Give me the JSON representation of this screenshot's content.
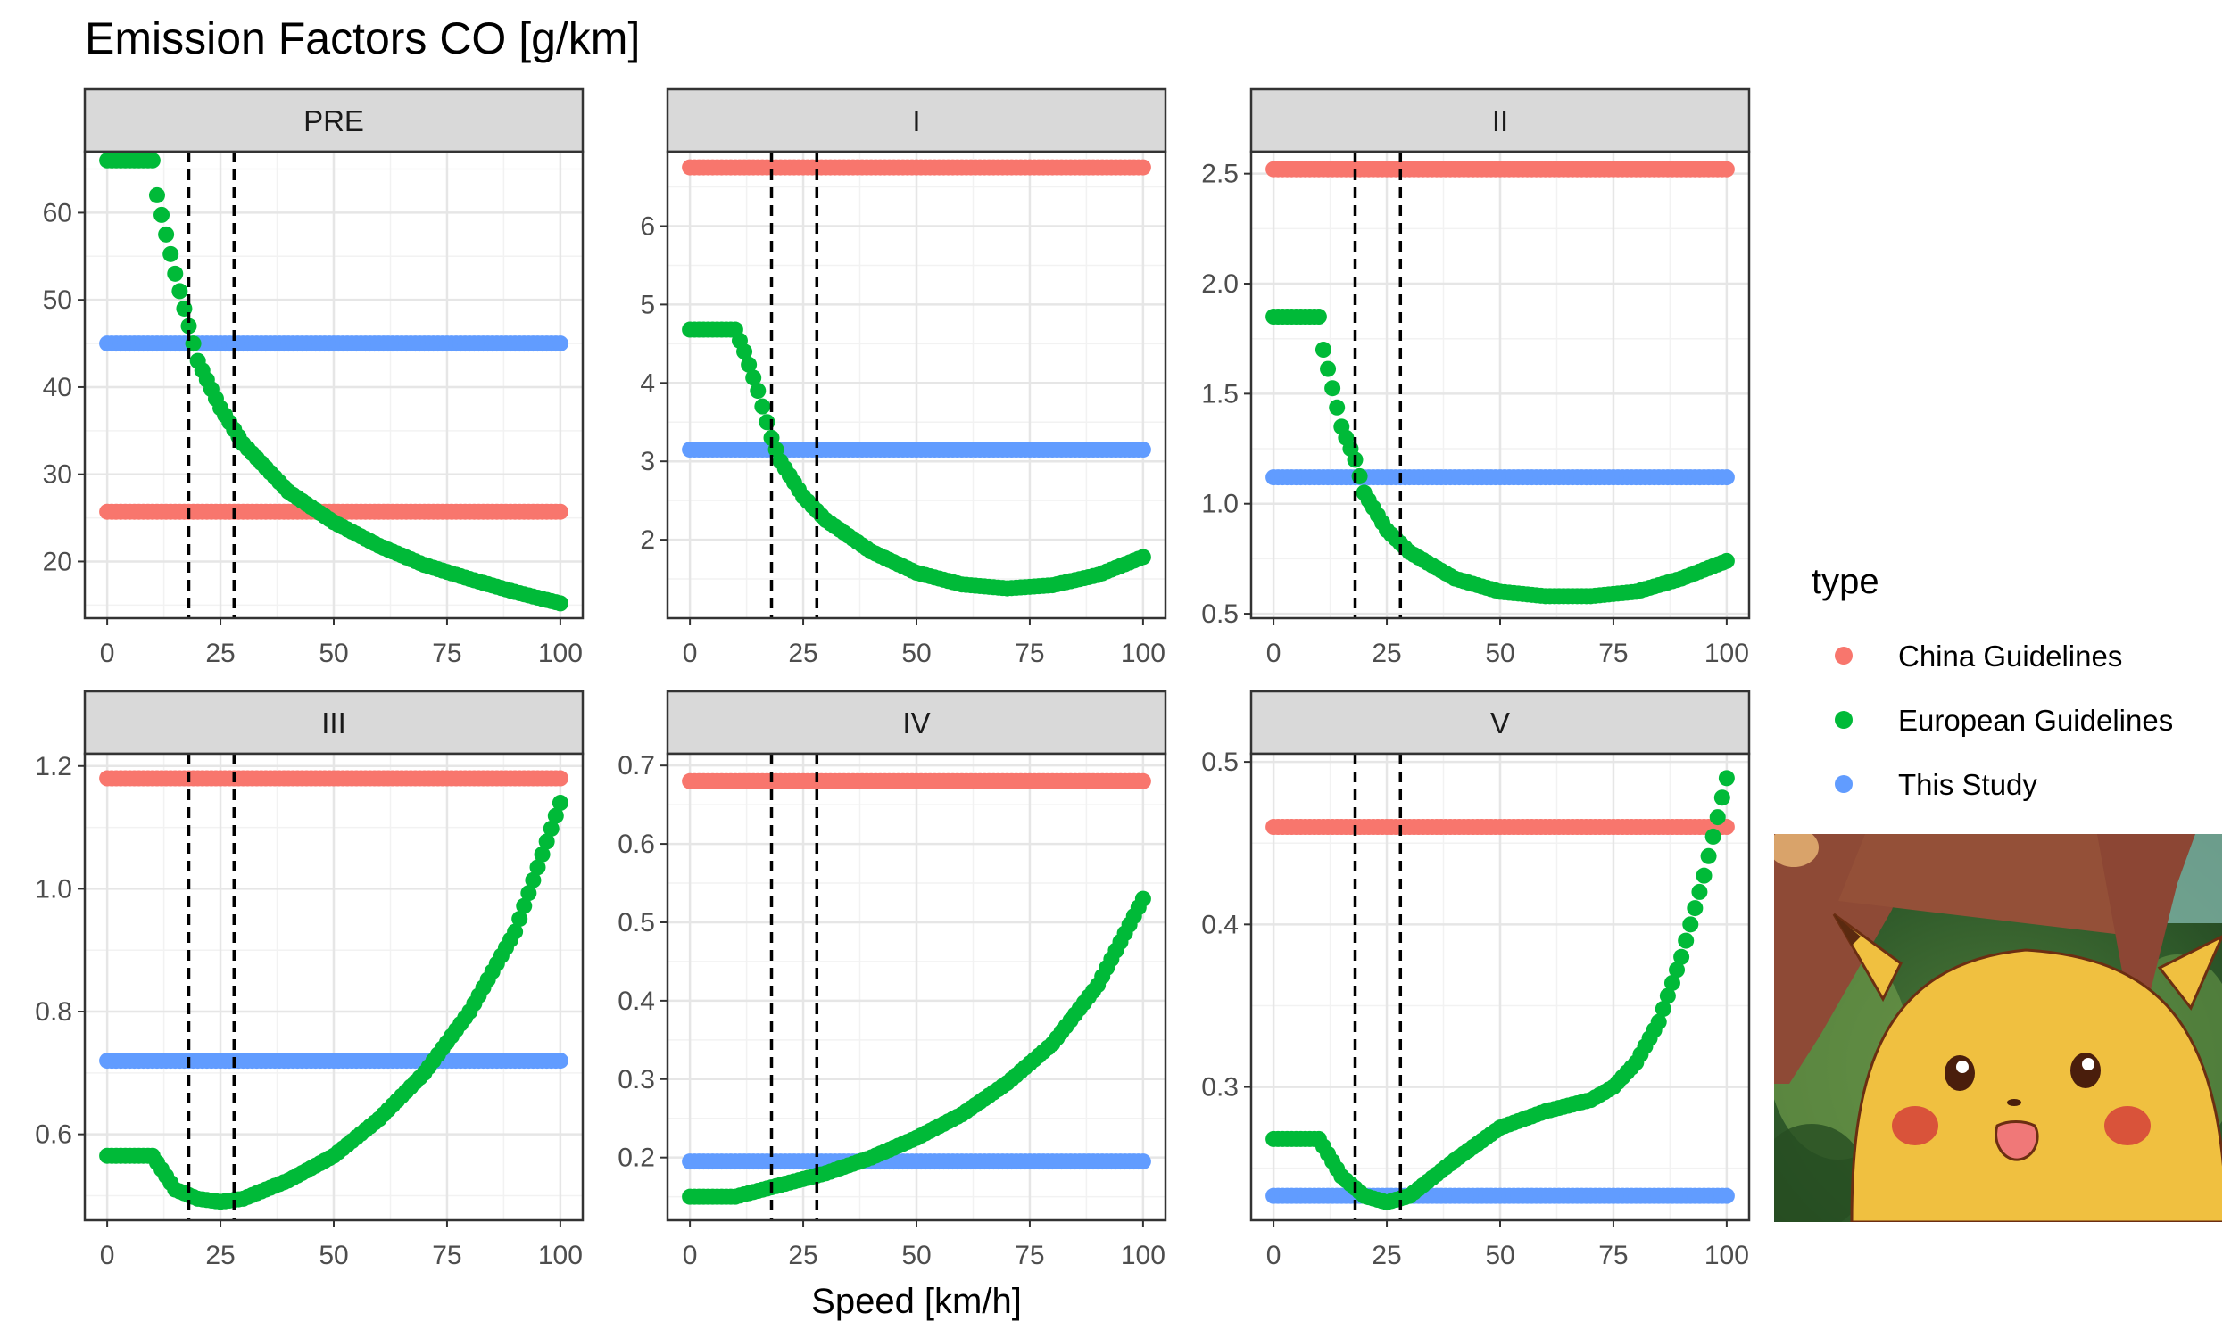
{
  "chart_data": {
    "type": "scatter",
    "title": "Emission Factors CO [g/km]",
    "xlabel": "Speed [km/h]",
    "ylabel": "",
    "xlim": [
      0,
      100
    ],
    "x_ticks": [
      "0",
      "25",
      "50",
      "75",
      "100"
    ],
    "vlines": [
      18,
      28
    ],
    "legend": {
      "title": "type",
      "position": "right",
      "entries": [
        {
          "name": "China Guidelines",
          "color": "#F8766D"
        },
        {
          "name": "European Guidelines",
          "color": "#00BA38"
        },
        {
          "name": "This Study",
          "color": "#619CFF"
        }
      ]
    },
    "panels": [
      {
        "name": "PRE",
        "ylim": [
          13.5,
          67
        ],
        "y_ticks": [
          20,
          30,
          40,
          50,
          60
        ],
        "y_tick_labels": [
          "20",
          "30",
          "40",
          "50",
          "60"
        ],
        "china": 25.7,
        "this_study": 45,
        "european": [
          [
            0,
            66
          ],
          [
            10,
            66
          ],
          [
            11,
            62
          ],
          [
            15,
            53
          ],
          [
            20,
            43
          ],
          [
            25,
            37.6
          ],
          [
            30,
            33.5
          ],
          [
            40,
            28
          ],
          [
            50,
            24.5
          ],
          [
            60,
            21.8
          ],
          [
            70,
            19.6
          ],
          [
            80,
            18
          ],
          [
            90,
            16.5
          ],
          [
            100,
            15.2
          ]
        ]
      },
      {
        "name": "I",
        "ylim": [
          1.0,
          6.95
        ],
        "y_ticks": [
          2,
          3,
          4,
          5,
          6
        ],
        "y_tick_labels": [
          "2",
          "3",
          "4",
          "5",
          "6"
        ],
        "china": 6.75,
        "this_study": 3.15,
        "european": [
          [
            0,
            4.68
          ],
          [
            10,
            4.68
          ],
          [
            12,
            4.4
          ],
          [
            15,
            3.9
          ],
          [
            18,
            3.3
          ],
          [
            20,
            3.0
          ],
          [
            25,
            2.55
          ],
          [
            30,
            2.25
          ],
          [
            40,
            1.85
          ],
          [
            50,
            1.58
          ],
          [
            60,
            1.43
          ],
          [
            70,
            1.38
          ],
          [
            80,
            1.42
          ],
          [
            90,
            1.55
          ],
          [
            100,
            1.78
          ]
        ]
      },
      {
        "name": "II",
        "ylim": [
          0.48,
          2.6
        ],
        "y_ticks": [
          0.5,
          1.0,
          1.5,
          2.0,
          2.5
        ],
        "y_tick_labels": [
          "0.5",
          "1.0",
          "1.5",
          "2.0",
          "2.5"
        ],
        "china": 2.52,
        "this_study": 1.12,
        "european": [
          [
            0,
            1.85
          ],
          [
            10,
            1.85
          ],
          [
            11,
            1.7
          ],
          [
            15,
            1.35
          ],
          [
            18,
            1.2
          ],
          [
            20,
            1.05
          ],
          [
            25,
            0.88
          ],
          [
            30,
            0.78
          ],
          [
            40,
            0.66
          ],
          [
            50,
            0.6
          ],
          [
            60,
            0.58
          ],
          [
            70,
            0.58
          ],
          [
            80,
            0.6
          ],
          [
            90,
            0.66
          ],
          [
            100,
            0.74
          ]
        ]
      },
      {
        "name": "III",
        "ylim": [
          0.46,
          1.22
        ],
        "y_ticks": [
          0.6,
          0.8,
          1.0,
          1.2
        ],
        "y_tick_labels": [
          "0.6",
          "0.8",
          "1.0",
          "1.2"
        ],
        "china": 1.18,
        "this_study": 0.72,
        "european": [
          [
            0,
            0.565
          ],
          [
            10,
            0.565
          ],
          [
            15,
            0.51
          ],
          [
            20,
            0.495
          ],
          [
            25,
            0.49
          ],
          [
            30,
            0.495
          ],
          [
            40,
            0.525
          ],
          [
            50,
            0.565
          ],
          [
            60,
            0.625
          ],
          [
            70,
            0.7
          ],
          [
            80,
            0.8
          ],
          [
            90,
            0.93
          ],
          [
            100,
            1.14
          ]
        ]
      },
      {
        "name": "IV",
        "ylim": [
          0.12,
          0.715
        ],
        "y_ticks": [
          0.2,
          0.3,
          0.4,
          0.5,
          0.6,
          0.7
        ],
        "y_tick_labels": [
          "0.2",
          "0.3",
          "0.4",
          "0.5",
          "0.6",
          "0.7"
        ],
        "china": 0.68,
        "this_study": 0.195,
        "european": [
          [
            0,
            0.15
          ],
          [
            10,
            0.15
          ],
          [
            20,
            0.165
          ],
          [
            30,
            0.18
          ],
          [
            40,
            0.2
          ],
          [
            50,
            0.225
          ],
          [
            60,
            0.255
          ],
          [
            70,
            0.295
          ],
          [
            80,
            0.345
          ],
          [
            90,
            0.42
          ],
          [
            100,
            0.53
          ]
        ]
      },
      {
        "name": "V",
        "ylim": [
          0.218,
          0.505
        ],
        "y_ticks": [
          0.3,
          0.4,
          0.5
        ],
        "y_tick_labels": [
          "0.3",
          "0.4",
          "0.5"
        ],
        "china": 0.46,
        "this_study": 0.233,
        "european": [
          [
            0,
            0.268
          ],
          [
            10,
            0.268
          ],
          [
            15,
            0.245
          ],
          [
            20,
            0.233
          ],
          [
            25,
            0.229
          ],
          [
            30,
            0.233
          ],
          [
            40,
            0.255
          ],
          [
            50,
            0.275
          ],
          [
            60,
            0.285
          ],
          [
            70,
            0.292
          ],
          [
            75,
            0.3
          ],
          [
            80,
            0.315
          ],
          [
            85,
            0.34
          ],
          [
            90,
            0.38
          ],
          [
            95,
            0.43
          ],
          [
            100,
            0.49
          ]
        ]
      }
    ]
  },
  "image": {
    "description_icon": "surprised-pikachu-meme"
  }
}
